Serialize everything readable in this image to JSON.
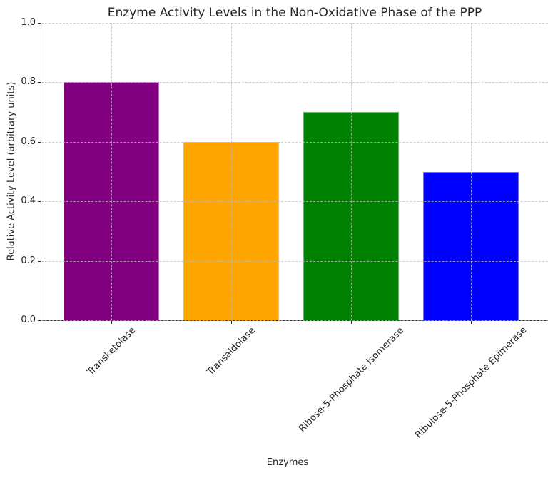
{
  "chart_data": {
    "type": "bar",
    "title": "Enzyme Activity Levels in the Non-Oxidative Phase of the PPP",
    "xlabel": "Enzymes",
    "ylabel": "Relative Activity Level (arbitrary units)",
    "categories": [
      "Transketolase",
      "Transaldolase",
      "Ribose-5-Phosphate Isomerase",
      "Ribulose-5-Phosphate Epimerase"
    ],
    "values": [
      0.8,
      0.6,
      0.7,
      0.5
    ],
    "bar_colors": [
      "#800080",
      "#FFA500",
      "#008000",
      "#0000FF"
    ],
    "ylim": [
      0.0,
      1.0
    ],
    "yticks": [
      0.0,
      0.2,
      0.4,
      0.6,
      0.8,
      1.0
    ],
    "ytick_labels": [
      "0.0",
      "0.2",
      "0.4",
      "0.6",
      "0.8",
      "1.0"
    ],
    "x_tick_rotation_deg": 45,
    "grid": {
      "visible": true,
      "style": "dashed",
      "drawn_over_bars": true
    },
    "legend": null
  },
  "style": {
    "background": "#ffffff",
    "text_color": "#262626",
    "spine_color": "#262626",
    "grid_color": "#d7d7d7"
  }
}
